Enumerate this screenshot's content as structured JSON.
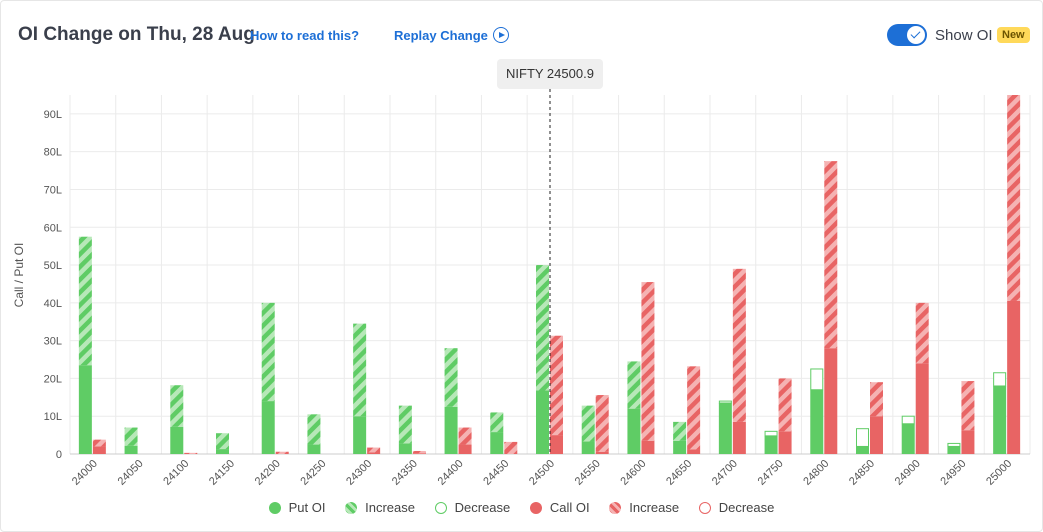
{
  "header": {
    "title": "OI Change on Thu, 28 Aug",
    "how_to_read": "How to read this?",
    "replay": "Replay Change",
    "show_oi_label": "Show OI",
    "badge": "New",
    "show_oi_on": true
  },
  "spot_label": "NIFTY 24500.9",
  "colors": {
    "put": "#5fcc65",
    "put_light": "#b7e8b8",
    "call": "#e86464",
    "call_light": "#f5b3b3",
    "grid": "#ebebeb",
    "axis_text": "#555555"
  },
  "legend": [
    {
      "label": "Put OI",
      "style": "put-solid"
    },
    {
      "label": "Increase",
      "style": "put-increase"
    },
    {
      "label": "Decrease",
      "style": "put-decrease"
    },
    {
      "label": "Call OI",
      "style": "call-solid"
    },
    {
      "label": "Increase",
      "style": "call-increase"
    },
    {
      "label": "Decrease",
      "style": "call-decrease"
    }
  ],
  "chart_data": {
    "type": "bar",
    "ylabel": "Call / Put OI",
    "ylim": [
      0,
      95
    ],
    "y_ticks": [
      "0",
      "10L",
      "20L",
      "30L",
      "40L",
      "50L",
      "60L",
      "70L",
      "80L",
      "90L"
    ],
    "spot_strike": 24500,
    "categories": [
      "24000",
      "24050",
      "24100",
      "24150",
      "24200",
      "24250",
      "24300",
      "24350",
      "24400",
      "24450",
      "24500",
      "24550",
      "24600",
      "24650",
      "24700",
      "24750",
      "24800",
      "24850",
      "24900",
      "24950",
      "25000"
    ],
    "series": [
      {
        "name": "Put OI",
        "base": [
          23.5,
          2.2,
          7.2,
          1.3,
          14,
          2.5,
          10,
          2.8,
          12.5,
          5.8,
          16.8,
          3.3,
          12,
          3.5,
          13.5,
          4.8,
          17,
          2,
          8,
          2,
          18
        ],
        "increase": [
          34,
          4.8,
          11,
          4.2,
          26,
          8,
          24.5,
          10,
          15.5,
          5.2,
          33.2,
          9.5,
          12.5,
          5,
          0,
          0,
          0,
          0,
          0,
          0,
          0
        ],
        "decrease": [
          0,
          0,
          0,
          0,
          0,
          0,
          0,
          0,
          0,
          0,
          0,
          0,
          0,
          0,
          0.5,
          1.2,
          5.5,
          4.7,
          2,
          0.8,
          3.5
        ]
      },
      {
        "name": "Call OI",
        "base": [
          2,
          0,
          0,
          0,
          0,
          0,
          0.4,
          0.2,
          2.5,
          0,
          5,
          0.6,
          3.5,
          1.2,
          8.5,
          6,
          28,
          10,
          24,
          6.3,
          40.5
        ],
        "increase": [
          1.8,
          0,
          0.3,
          0,
          0.6,
          0,
          1.3,
          0.6,
          4.5,
          3.2,
          26.3,
          15,
          42,
          22,
          40.5,
          14,
          49.5,
          9,
          16,
          13,
          54.5
        ],
        "decrease": [
          0,
          0,
          0,
          0,
          0,
          0,
          0,
          0,
          0,
          0,
          0,
          0,
          0,
          0,
          0,
          0,
          0,
          0,
          0,
          0,
          0
        ]
      }
    ]
  }
}
